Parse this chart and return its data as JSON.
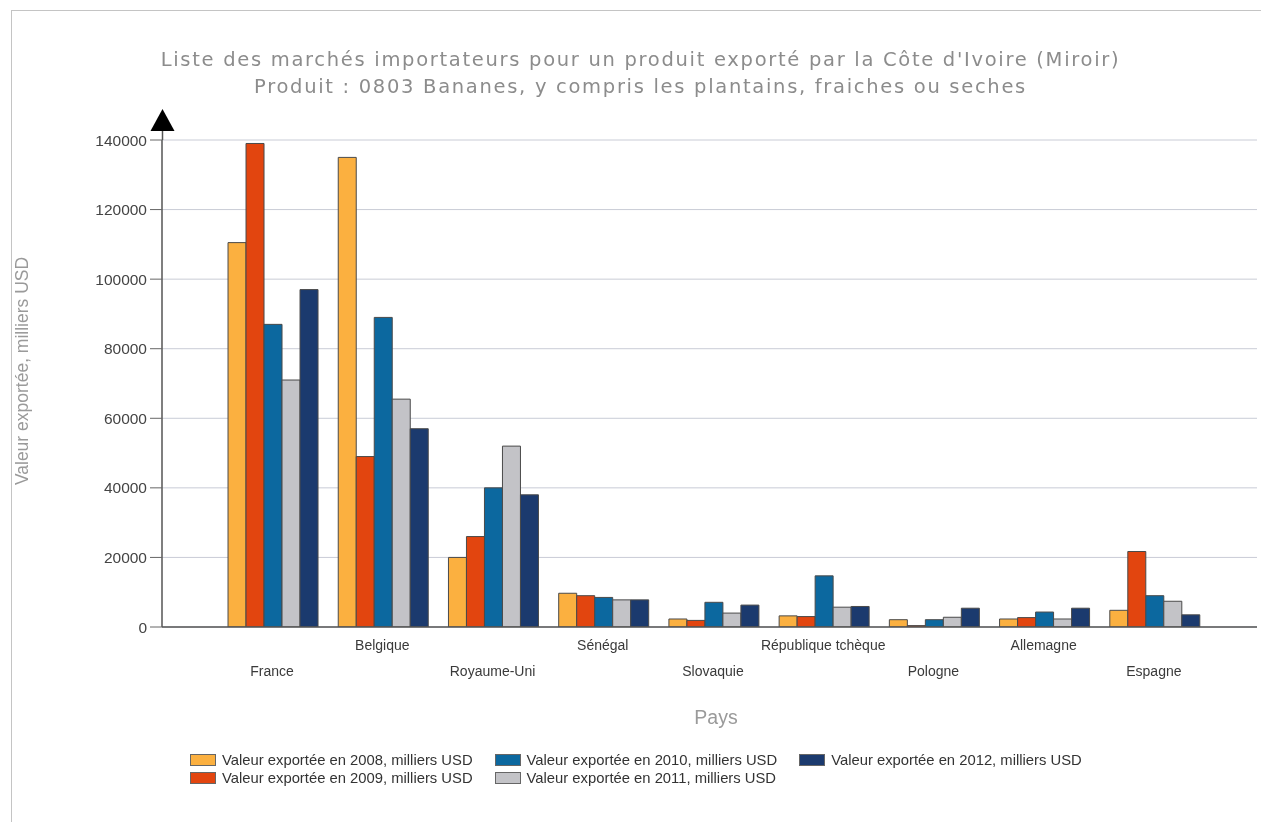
{
  "chart_data": {
    "type": "bar",
    "title": "Liste des marchés importateurs pour un produit exporté par la Côte d'Ivoire (Miroir)",
    "subtitle": "Produit : 0803 Bananes, y compris les plantains, fraiches ou seches",
    "xlabel": "Pays",
    "ylabel": "Valeur exportée, milliers USD",
    "categories": [
      "France",
      "Belgique",
      "Royaume-Uni",
      "Sénégal",
      "Slovaquie",
      "République tchèque",
      "Pologne",
      "Allemagne",
      "Espagne"
    ],
    "series": [
      {
        "name": "Valeur exportée en 2008, milliers USD",
        "color": "#fbb040",
        "values": [
          110500,
          135000,
          20000,
          9700,
          2300,
          3200,
          2100,
          2300,
          4800
        ]
      },
      {
        "name": "Valeur exportée en 2009, milliers USD",
        "color": "#e2450f",
        "values": [
          139000,
          49000,
          26000,
          9000,
          1900,
          3000,
          400,
          2700,
          21700
        ]
      },
      {
        "name": "Valeur exportée en 2010, milliers USD",
        "color": "#0c689f",
        "values": [
          87000,
          89000,
          40000,
          8500,
          7100,
          14700,
          2100,
          4300,
          9000
        ]
      },
      {
        "name": "Valeur exportée en 2011, milliers USD",
        "color": "#c3c3c7",
        "values": [
          71000,
          65500,
          52000,
          7800,
          4000,
          5700,
          2800,
          2300,
          7400
        ]
      },
      {
        "name": "Valeur exportée en 2012, milliers USD",
        "color": "#1b3a6e",
        "values": [
          97000,
          57000,
          38000,
          7800,
          6300,
          5900,
          5400,
          5400,
          3500
        ]
      }
    ],
    "ylim": [
      0,
      140000
    ],
    "yticks": [
      0,
      20000,
      40000,
      60000,
      80000,
      100000,
      120000,
      140000
    ],
    "grid": "y",
    "legend": "bottom"
  }
}
